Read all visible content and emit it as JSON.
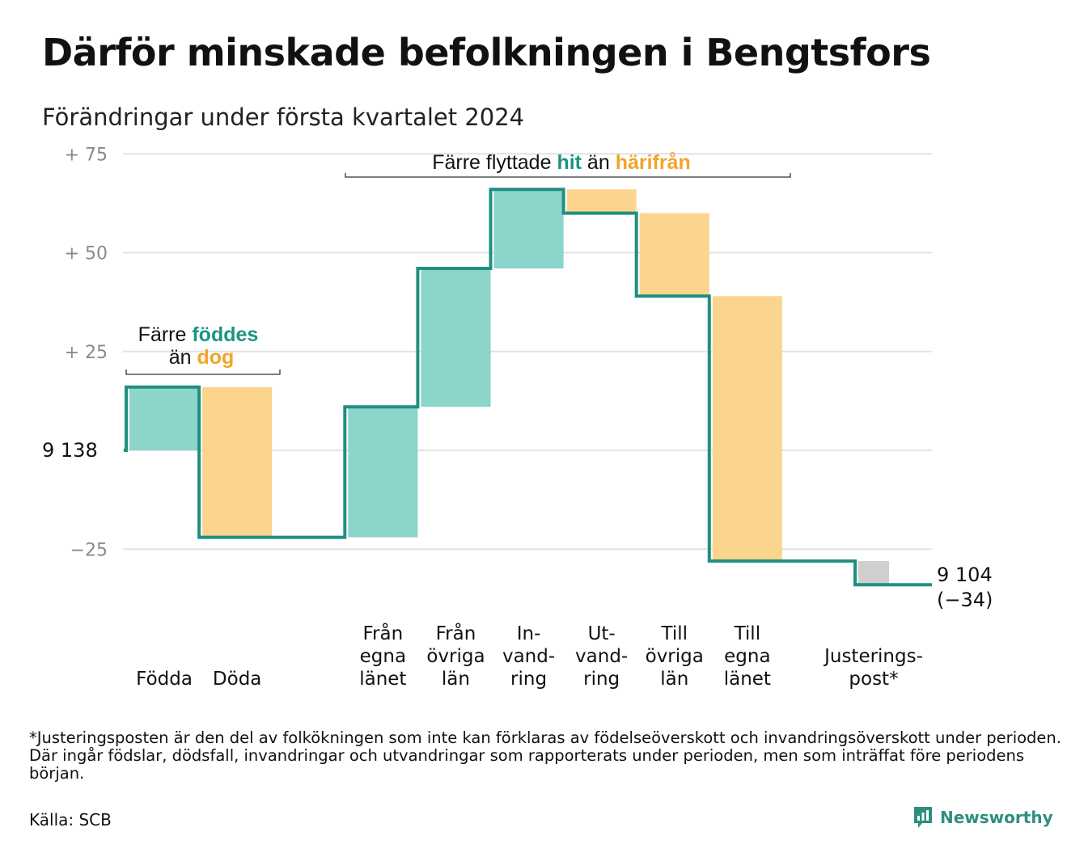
{
  "title": "Därför minskade befolkningen i Bengtsfors",
  "subtitle": "Förändringar under första kvartalet 2024",
  "footnote": "*Justeringsposten är den del av folkökningen som inte kan förklaras av födelseöverskott och invandringsöverskott under perioden. Där ingår födslar, dödsfall, invandringar och utvandringar som rapporterats under perioden, men som inträffat före periodens början.",
  "source": "Källa: SCB",
  "brand": "Newsworthy",
  "colors": {
    "increase_fill": "#8cd5cb",
    "decrease_fill": "#fbd48e",
    "adjustment_fill": "#cfcfcf",
    "line": "#1f8f80",
    "accent_teal": "#1a9484",
    "accent_orange": "#f2a42a",
    "grid": "#e3e3e3",
    "tick_text": "#8a8a8a"
  },
  "annotations": {
    "births": {
      "line1_prefix": "Färre ",
      "line1_highlight": "föddes",
      "line2_prefix": "än ",
      "line2_highlight": "dog"
    },
    "moves": {
      "prefix": "Färre flyttade ",
      "highlight1": "hit",
      "middle": " än ",
      "highlight2": "härifrån"
    }
  },
  "chart_data": {
    "type": "waterfall",
    "start_value": 9138,
    "start_label": "9 138",
    "end_value": 9104,
    "end_label": "9 104",
    "end_change_label": "(−34)",
    "y_axis": {
      "min": -40,
      "max": 75,
      "ticks": [
        {
          "value": 75,
          "label": "+  75"
        },
        {
          "value": 50,
          "label": "+  50"
        },
        {
          "value": 25,
          "label": "+  25"
        },
        {
          "value": 0,
          "label": ""
        },
        {
          "value": -25,
          "label": "−25"
        }
      ],
      "grid": true
    },
    "steps": [
      {
        "label": [
          "Födda"
        ],
        "change": 16,
        "kind": "increase"
      },
      {
        "label": [
          "Döda"
        ],
        "change": -38,
        "kind": "decrease"
      },
      {
        "label": [],
        "change": 0,
        "kind": "gap"
      },
      {
        "label": [
          "Från",
          "egna",
          "länet"
        ],
        "change": 33,
        "kind": "increase"
      },
      {
        "label": [
          "Från",
          "övriga",
          "län"
        ],
        "change": 35,
        "kind": "increase"
      },
      {
        "label": [
          "In-",
          "vand-",
          "ring"
        ],
        "change": 20,
        "kind": "increase"
      },
      {
        "label": [
          "Ut-",
          "vand-",
          "ring"
        ],
        "change": -6,
        "kind": "decrease"
      },
      {
        "label": [
          "Till",
          "övriga",
          "län"
        ],
        "change": -21,
        "kind": "decrease"
      },
      {
        "label": [
          "Till",
          "egna",
          "länet"
        ],
        "change": -67,
        "kind": "decrease"
      },
      {
        "label": [],
        "change": 0,
        "kind": "gap"
      },
      {
        "label": [
          "Justerings-",
          "post*"
        ],
        "change": -6,
        "kind": "adjustment"
      }
    ]
  }
}
